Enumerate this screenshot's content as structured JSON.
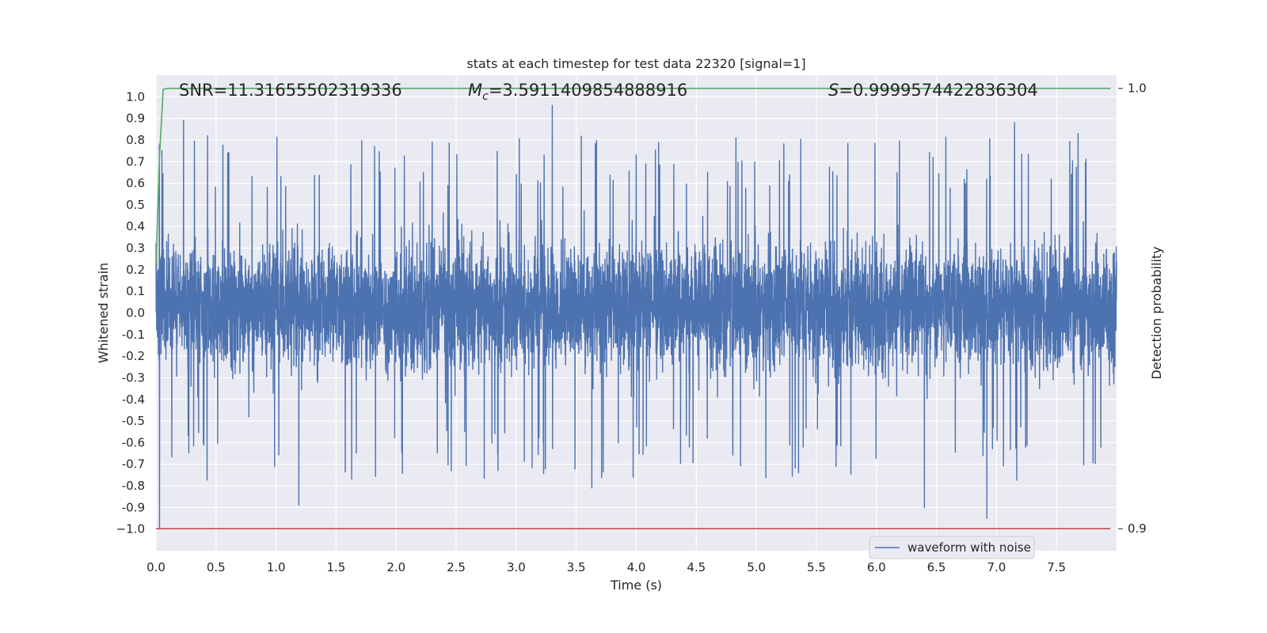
{
  "chart_data": {
    "type": "line",
    "title": "stats at each timestep for test data 22320 [signal=1]",
    "xlabel": "Time (s)",
    "ylabel": "Whitened strain",
    "y2label": "Detection probability",
    "xlim": [
      0.0,
      8.0
    ],
    "ylim": [
      -1.1,
      1.1
    ],
    "y2lim": [
      0.895,
      1.003
    ],
    "x_ticks": [
      0.0,
      0.5,
      1.0,
      1.5,
      2.0,
      2.5,
      3.0,
      3.5,
      4.0,
      4.5,
      5.0,
      5.5,
      6.0,
      6.5,
      7.0,
      7.5
    ],
    "x_tick_labels": [
      "0.0",
      "0.5",
      "1.0",
      "1.5",
      "2.0",
      "2.5",
      "3.0",
      "3.5",
      "4.0",
      "4.5",
      "5.0",
      "5.5",
      "6.0",
      "6.5",
      "7.0",
      "7.5"
    ],
    "y_ticks": [
      1.0,
      0.9,
      0.8,
      0.7,
      0.6,
      0.5,
      0.4,
      0.3,
      0.2,
      0.1,
      0.0,
      -0.1,
      -0.2,
      -0.3,
      -0.4,
      -0.5,
      -0.6,
      -0.7,
      -0.8,
      -0.9,
      -1.0
    ],
    "y_tick_labels": [
      "1.0",
      "0.9",
      "0.8",
      "0.7",
      "0.6",
      "0.5",
      "0.4",
      "0.3",
      "0.2",
      "0.1",
      "0.0",
      "-0.1",
      "-0.2",
      "-0.3",
      "-0.4",
      "-0.5",
      "-0.6",
      "-0.7",
      "-0.8",
      "-0.9",
      "−1.0"
    ],
    "y2_ticks": [
      1.0,
      0.9
    ],
    "y2_tick_labels": [
      "1.0",
      "0.9"
    ],
    "grid": true,
    "annotations": {
      "snr": "SNR=11.31655502319336",
      "mc_symbol": "M",
      "mc_sub": "c",
      "mc_value": "=3.5911409854888916",
      "s_symbol": "S",
      "s_value": "=0.9999574422836304"
    },
    "legend": {
      "position": "lower-right",
      "entries": [
        "waveform with noise"
      ]
    },
    "series": [
      {
        "name": "waveform with noise",
        "color": "#4c72b0",
        "kind": "noise",
        "x_range": [
          0.0,
          8.0
        ],
        "typical_range": [
          -0.45,
          0.5
        ],
        "extremes": [
          {
            "x": 0.03,
            "y": -1.0
          },
          {
            "x": 0.05,
            "y": 0.75
          },
          {
            "x": 0.23,
            "y": 0.89
          },
          {
            "x": 0.43,
            "y": 0.82
          },
          {
            "x": 1.19,
            "y": -0.89
          },
          {
            "x": 1.82,
            "y": 0.77
          },
          {
            "x": 2.3,
            "y": 0.79
          },
          {
            "x": 3.3,
            "y": 0.96
          },
          {
            "x": 3.63,
            "y": -0.81
          },
          {
            "x": 6.4,
            "y": -0.9
          },
          {
            "x": 6.92,
            "y": -0.95
          },
          {
            "x": 7.15,
            "y": 0.88
          },
          {
            "x": 7.68,
            "y": 0.83
          }
        ]
      },
      {
        "name": "detection probability",
        "color": "#55a868",
        "axis": "y2",
        "x": [
          0.0,
          0.03,
          0.06,
          0.1,
          0.3,
          7.95
        ],
        "y": [
          0.96,
          0.985,
          0.9998,
          1.0,
          1.0,
          1.0
        ]
      },
      {
        "name": "threshold",
        "color": "#c44e52",
        "axis": "y2",
        "x": [
          0.0,
          7.95
        ],
        "y": [
          0.9,
          0.9
        ]
      }
    ]
  }
}
